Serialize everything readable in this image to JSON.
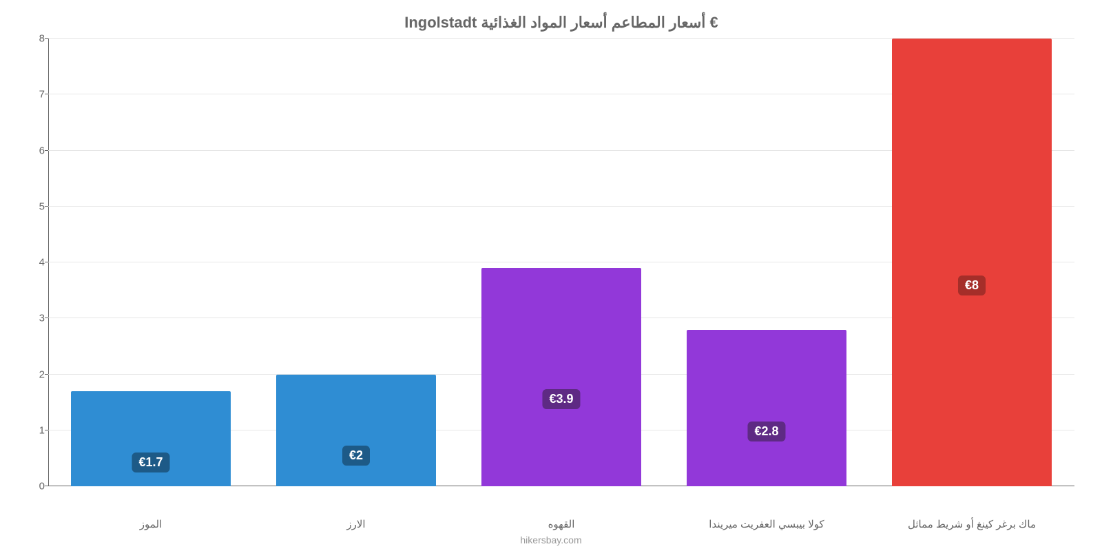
{
  "chart": {
    "type": "bar",
    "title": "€ أسعار المطاعم أسعار المواد الغذائية Ingolstadt",
    "title_fontsize": 22,
    "title_color": "#666666",
    "source": "hikersbay.com",
    "source_color": "#999999",
    "background_color": "#ffffff",
    "grid_color": "#e6e6e6",
    "axis_color": "#666666",
    "ylim_min": 0,
    "ylim_max": 8,
    "ytick_step": 1,
    "yticks": [
      "0",
      "1",
      "2",
      "3",
      "4",
      "5",
      "6",
      "7",
      "8"
    ],
    "tick_fontsize": 15,
    "xlabel_fontsize": 15,
    "bar_width_pct": 78,
    "label_fontsize": 18,
    "categories": [
      "ماك برغر كينغ أو شريط مماثل",
      "كولا بيبسي العفريت ميريندا",
      "القهوه",
      "الارز",
      "الموز"
    ],
    "values": [
      8,
      2.8,
      3.9,
      2,
      1.7
    ],
    "value_labels": [
      "€8",
      "€2.8",
      "€3.9",
      "€2",
      "€1.7"
    ],
    "bar_colors": [
      "#e8403a",
      "#9238d9",
      "#9238d9",
      "#2f8dd3",
      "#2f8dd3"
    ],
    "label_bg_colors": [
      "#a52e29",
      "#5e2a84",
      "#5e2a84",
      "#1d5a87",
      "#1d5a87"
    ],
    "label_positions_pct": [
      55,
      65,
      60,
      72,
      75
    ]
  }
}
